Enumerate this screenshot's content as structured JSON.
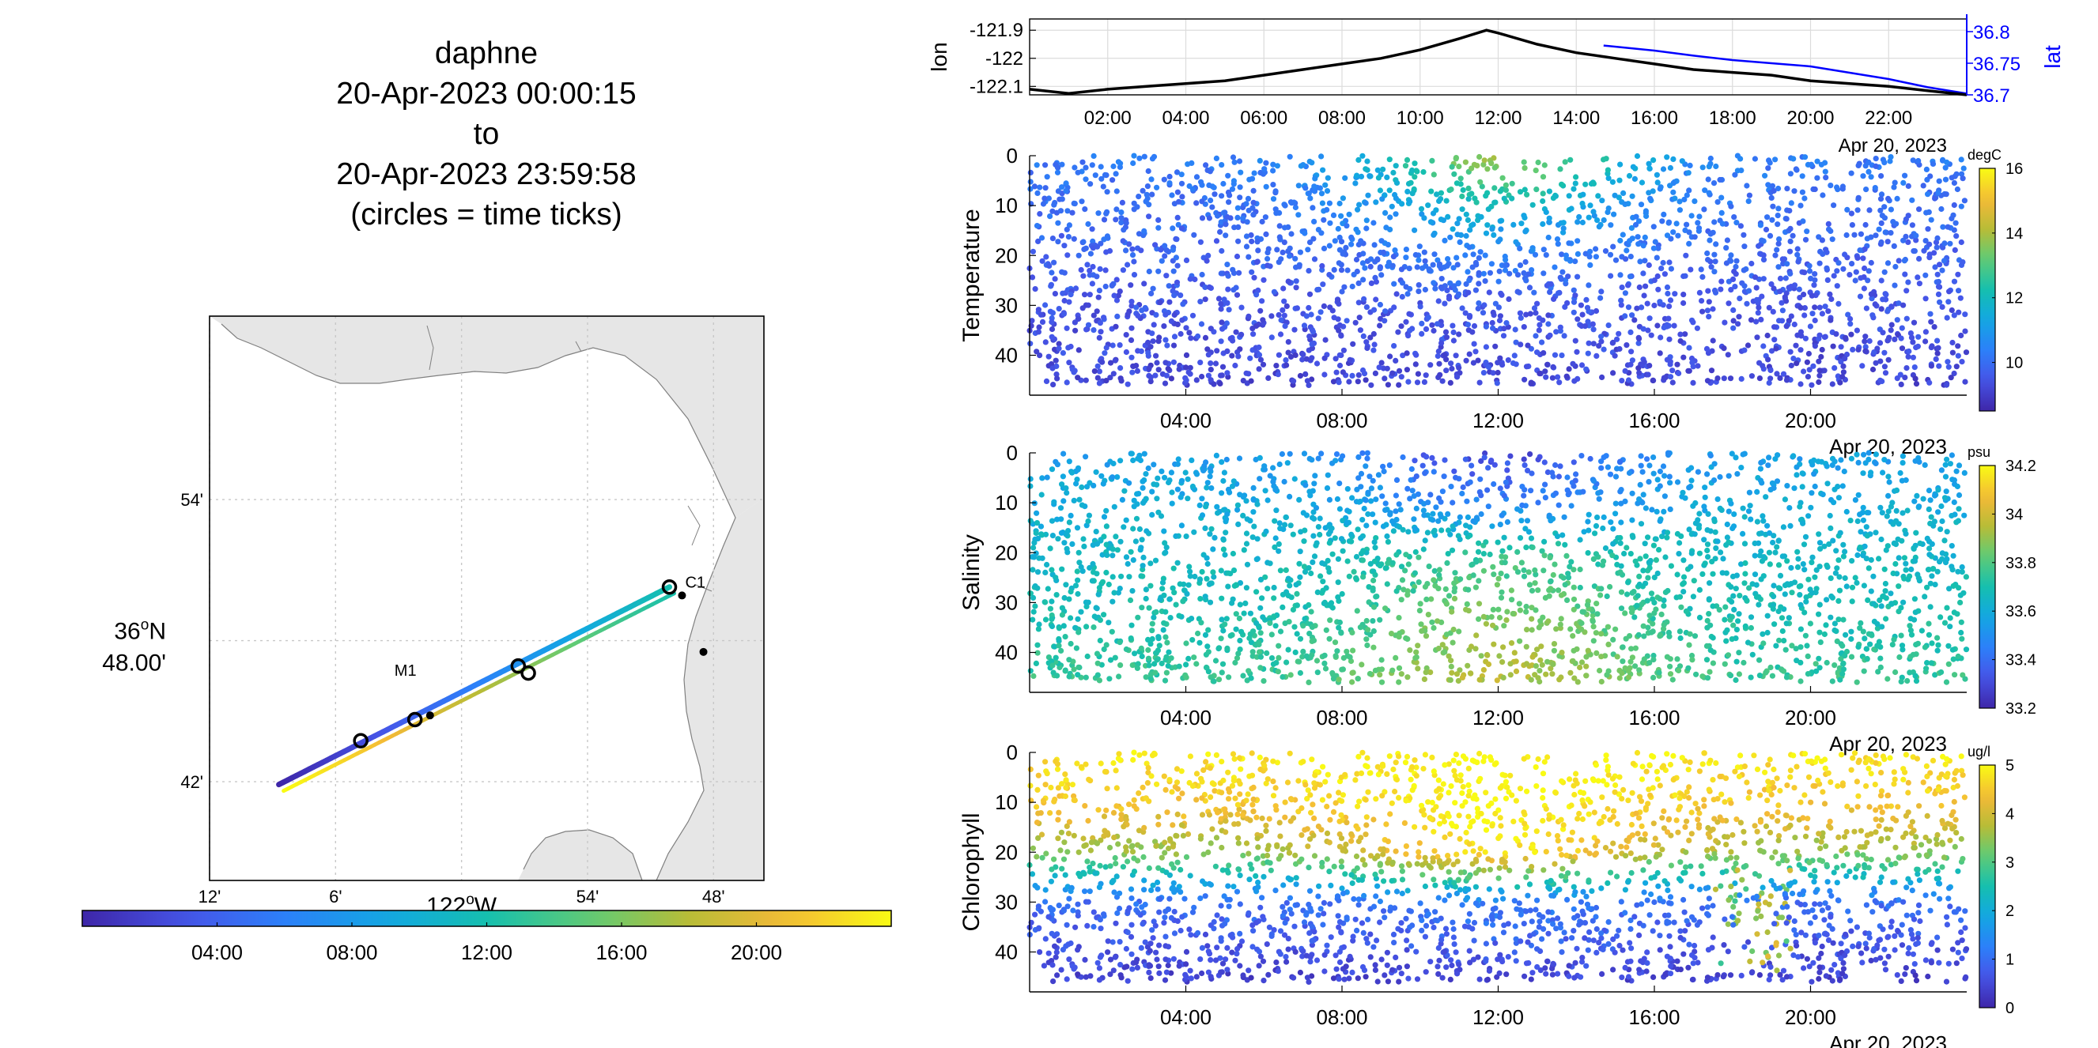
{
  "title": {
    "name": "daphne",
    "start": "20-Apr-2023 00:00:15",
    "to": "to",
    "end": "20-Apr-2023 23:59:58",
    "note": "(circles = time ticks)"
  },
  "colormap_name": "parula",
  "colors": {
    "track_black": "#000000",
    "lat_blue": "#0000ff",
    "land": "#e6e6e6",
    "coast": "#808080",
    "grid": "#c8c8c8"
  },
  "chart_data": [
    {
      "id": "map",
      "type": "scatter",
      "lat_label": "36°N 48.00'",
      "lat_deg": "36",
      "lat_min": "48.00'",
      "lon_label": "122°W",
      "lon_deg": "122",
      "xtick_labels": [
        "12'",
        "6'",
        "54'",
        "48'"
      ],
      "xtick_lon": [
        -122.2,
        -122.1,
        -121.9,
        -121.8
      ],
      "ytick_labels": [
        "54'",
        "42'"
      ],
      "ytick_lat": [
        36.9,
        36.7
      ],
      "xlim": [
        -122.2,
        -121.76
      ],
      "ylim": [
        36.63,
        37.03
      ],
      "track_start": [
        -122.145,
        36.698
      ],
      "track_end": [
        -121.835,
        36.838
      ],
      "time_tick_circles": [
        [
          -122.08,
          36.729
        ],
        [
          -122.037,
          36.744
        ],
        [
          -121.955,
          36.782
        ],
        [
          -121.947,
          36.777
        ],
        [
          -121.835,
          36.838
        ]
      ],
      "markers": [
        {
          "label": "M1",
          "lon": -122.025,
          "lat": 36.747
        },
        {
          "label": "C1",
          "lon": -121.825,
          "lat": 36.832
        },
        {
          "label": "",
          "lon": -121.808,
          "lat": 36.792
        }
      ]
    },
    {
      "id": "time-colorbar",
      "type": "colorbar",
      "tick_labels": [
        "04:00",
        "08:00",
        "12:00",
        "16:00",
        "20:00"
      ],
      "tick_hours": [
        4,
        8,
        12,
        16,
        20
      ],
      "range_hours": [
        0,
        24
      ]
    },
    {
      "id": "position",
      "type": "line",
      "ylabel_left": "lon",
      "ylabel_right": "lat",
      "yticks_left": [
        "-121.9",
        "-122",
        "-122.1"
      ],
      "yticks_left_values": [
        -121.9,
        -122,
        -122.1
      ],
      "yticks_right": [
        "36.8",
        "36.75",
        "36.7"
      ],
      "yticks_right_values": [
        36.8,
        36.75,
        36.7
      ],
      "ylim_left": [
        -122.13,
        -121.86
      ],
      "ylim_right": [
        36.7,
        36.82
      ],
      "xtick_labels": [
        "02:00",
        "04:00",
        "06:00",
        "08:00",
        "10:00",
        "12:00",
        "14:00",
        "16:00",
        "18:00",
        "20:00",
        "22:00"
      ],
      "xtick_hours": [
        2,
        4,
        6,
        8,
        10,
        12,
        14,
        16,
        18,
        20,
        22
      ],
      "xlim_hours": [
        0,
        24
      ],
      "date_label": "Apr 20, 2023",
      "series": [
        {
          "name": "lon",
          "x": [
            0,
            1,
            2,
            3,
            4,
            5,
            6,
            7,
            8,
            9,
            10,
            11,
            11.7,
            12,
            13,
            14,
            15,
            16,
            17,
            18,
            19,
            20,
            21,
            22,
            23,
            24
          ],
          "values": [
            -122.11,
            -122.125,
            -122.11,
            -122.1,
            -122.09,
            -122.08,
            -122.06,
            -122.04,
            -122.02,
            -122.0,
            -121.97,
            -121.93,
            -121.9,
            -121.91,
            -121.95,
            -121.98,
            -122.0,
            -122.02,
            -122.04,
            -122.05,
            -122.06,
            -122.08,
            -122.09,
            -122.1,
            -122.115,
            -122.13
          ]
        },
        {
          "name": "lat",
          "x": [
            14.7,
            16,
            17,
            18,
            19,
            20,
            21,
            22,
            23,
            24
          ],
          "values": [
            36.778,
            36.77,
            36.762,
            36.755,
            36.75,
            36.745,
            36.735,
            36.725,
            36.712,
            36.702
          ]
        }
      ]
    },
    {
      "id": "temperature",
      "type": "scatter",
      "ylabel": "Temperature",
      "ytick_labels": [
        "0",
        "10",
        "20",
        "30",
        "40"
      ],
      "ytick_values": [
        0,
        10,
        20,
        30,
        40
      ],
      "ylim": [
        0,
        48
      ],
      "xtick_labels": [
        "04:00",
        "08:00",
        "12:00",
        "16:00",
        "20:00"
      ],
      "xtick_hours": [
        4,
        8,
        12,
        16,
        20
      ],
      "xlim_hours": [
        0,
        24
      ],
      "date_label": "Apr 20, 2023",
      "colorbar": {
        "unit": "degC",
        "tick_labels": [
          "16",
          "14",
          "12",
          "10"
        ],
        "tick_values": [
          16,
          14,
          12,
          10
        ],
        "range": [
          8.5,
          16
        ]
      },
      "profile_depth_vs_value": {
        "depth_m": [
          0,
          10,
          20,
          30,
          45
        ],
        "value_day": [
          13.8,
          12,
          10.3,
          9.6,
          9.3
        ],
        "value_night": [
          10.2,
          10,
          9.8,
          9.5,
          9.2
        ]
      }
    },
    {
      "id": "salinity",
      "type": "scatter",
      "ylabel": "Salinity",
      "ytick_labels": [
        "0",
        "10",
        "20",
        "30",
        "40"
      ],
      "ytick_values": [
        0,
        10,
        20,
        30,
        40
      ],
      "ylim": [
        0,
        48
      ],
      "xtick_labels": [
        "04:00",
        "08:00",
        "12:00",
        "16:00",
        "20:00"
      ],
      "xtick_hours": [
        4,
        8,
        12,
        16,
        20
      ],
      "xlim_hours": [
        0,
        24
      ],
      "date_label": "Apr 20, 2023",
      "colorbar": {
        "unit": "psu",
        "tick_labels": [
          "34.2",
          "34",
          "33.8",
          "33.6",
          "33.4",
          "33.2"
        ],
        "tick_values": [
          34.2,
          34,
          33.8,
          33.6,
          33.4,
          33.2
        ],
        "range": [
          33.2,
          34.2
        ]
      },
      "profile_depth_vs_value": {
        "depth_m": [
          0,
          10,
          20,
          30,
          45
        ],
        "value_day": [
          33.3,
          33.45,
          33.75,
          33.85,
          33.95
        ],
        "value_night": [
          33.55,
          33.6,
          33.65,
          33.68,
          33.75
        ]
      }
    },
    {
      "id": "chlorophyll",
      "type": "scatter",
      "ylabel": "Chlorophyll",
      "ytick_labels": [
        "0",
        "10",
        "20",
        "30",
        "40"
      ],
      "ytick_values": [
        0,
        10,
        20,
        30,
        40
      ],
      "ylim": [
        0,
        48
      ],
      "xtick_labels": [
        "04:00",
        "08:00",
        "12:00",
        "16:00",
        "20:00"
      ],
      "xtick_hours": [
        4,
        8,
        12,
        16,
        20
      ],
      "xlim_hours": [
        0,
        24
      ],
      "date_label": "Apr 20, 2023",
      "colorbar": {
        "unit": "ug/l",
        "tick_labels": [
          "5",
          "4",
          "3",
          "2",
          "1",
          "0"
        ],
        "tick_values": [
          5,
          4,
          3,
          2,
          1,
          0
        ],
        "range": [
          0,
          5
        ]
      },
      "profile_depth_vs_value": {
        "depth_m": [
          0,
          10,
          20,
          25,
          30,
          45
        ],
        "value_day": [
          5,
          5,
          4.8,
          3,
          1.2,
          0.5
        ],
        "value_night": [
          4.8,
          4.5,
          3.5,
          2.2,
          1.0,
          0.4
        ]
      }
    }
  ]
}
